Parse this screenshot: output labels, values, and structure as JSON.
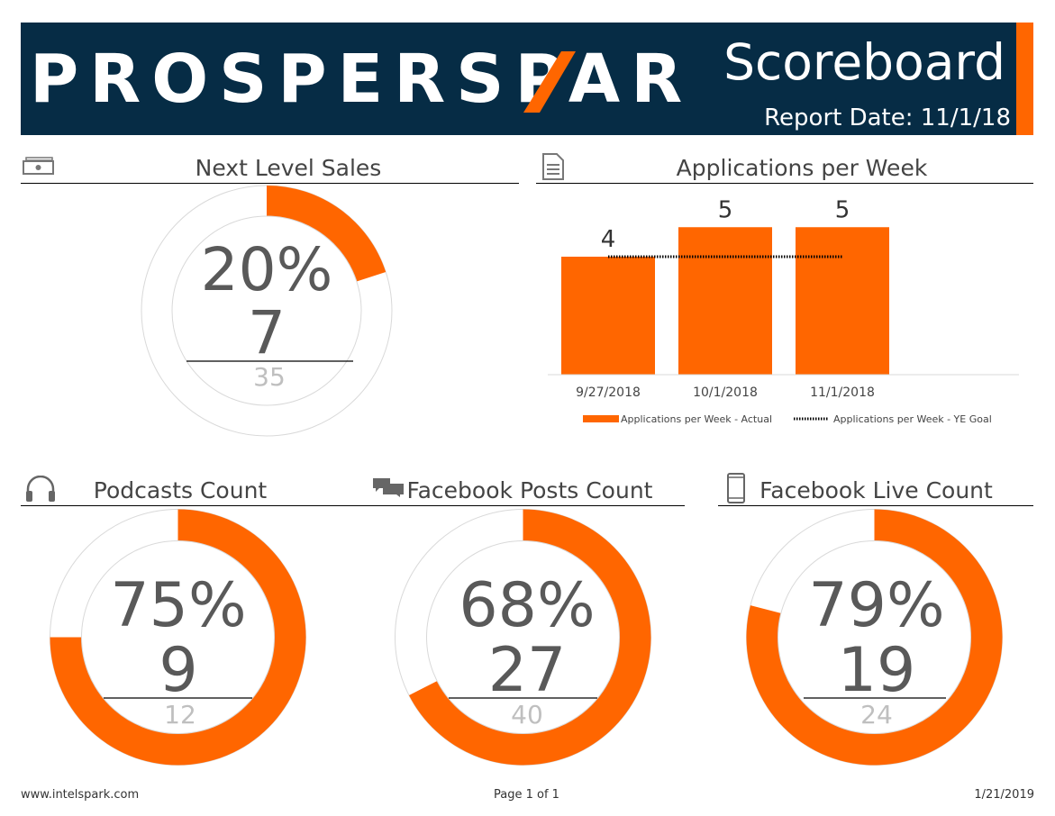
{
  "header": {
    "logo": "PROSPERSPARK",
    "title": "Scoreboard",
    "report_date": "Report Date: 11/1/18"
  },
  "colors": {
    "accent": "#ff6600",
    "header_bg": "#062c45",
    "track": "#d9d9d9",
    "big_text": "#595959",
    "total_text": "#bfbfbf"
  },
  "sections": {
    "sales": {
      "title": "Next Level Sales",
      "icon": "money-icon"
    },
    "applications": {
      "title": "Applications per Week",
      "icon": "document-icon"
    },
    "podcasts": {
      "title": "Podcasts Count",
      "icon": "headphones-icon"
    },
    "fb_posts": {
      "title": "Facebook Posts Count",
      "icon": "chat-icon"
    },
    "fb_live": {
      "title": "Facebook Live Count",
      "icon": "phone-icon"
    }
  },
  "chart_data": [
    {
      "type": "pie",
      "name": "sales_gauge",
      "percent_label": "20%",
      "value": 7,
      "total": 35,
      "fraction": 0.2
    },
    {
      "type": "bar",
      "categories": [
        "9/27/2018",
        "10/1/2018",
        "11/1/2018"
      ],
      "series": [
        {
          "name": "Applications per Week - Actual",
          "values": [
            4,
            5,
            5
          ]
        },
        {
          "name": "Applications per Week - YE Goal",
          "values": [
            4,
            4,
            4
          ]
        }
      ],
      "data_labels": [
        "4",
        "5",
        "5"
      ],
      "ylim": [
        0,
        6
      ],
      "legend": "bottom"
    },
    {
      "type": "pie",
      "name": "podcasts_gauge",
      "percent_label": "75%",
      "value": 9,
      "total": 12,
      "fraction": 0.75
    },
    {
      "type": "pie",
      "name": "fb_posts_gauge",
      "percent_label": "68%",
      "value": 27,
      "total": 40,
      "fraction": 0.675
    },
    {
      "type": "pie",
      "name": "fb_live_gauge",
      "percent_label": "79%",
      "value": 19,
      "total": 24,
      "fraction": 0.79
    }
  ],
  "footer": {
    "website": "www.intelspark.com",
    "page": "Page 1 of 1",
    "date": "1/21/2019"
  }
}
